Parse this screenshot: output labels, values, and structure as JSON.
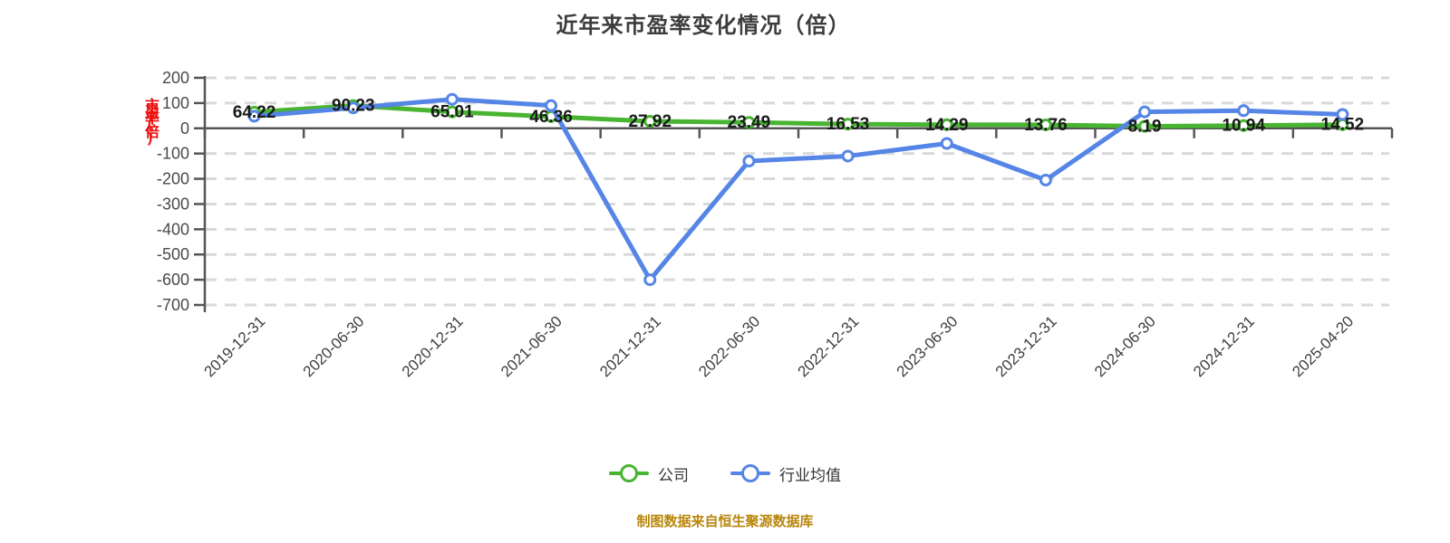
{
  "title": "近年来市盈率变化情况（倍）",
  "y_axis_unit_label": "市盈率(倍)",
  "footer": {
    "text": "制图数据来自恒生聚源数据库"
  },
  "legend": {
    "position": "bottom",
    "items": [
      {
        "label": "公司",
        "color": "#48b432"
      },
      {
        "label": "行业均值",
        "color": "#5585e6"
      }
    ]
  },
  "colors": {
    "company_line": "#48b432",
    "industry_line": "#5585e6",
    "grid_line": "#d9d9d9",
    "axis_line": "#555555",
    "y_tick_label": "#4a4a4a",
    "x_tick_label": "#3f3f3f",
    "value_label": "#1a1a1a",
    "title": "#3d3d3d",
    "footer": "#b8860b",
    "unit_label_red": "#ee1111",
    "background": "#ffffff"
  },
  "chart_data": {
    "type": "line",
    "title": "近年来市盈率变化情况（倍）",
    "xlabel": "",
    "ylabel": "市盈率(倍)",
    "ylim": [
      -700,
      200
    ],
    "y_ticks": [
      200,
      100,
      0,
      -100,
      -200,
      -300,
      -400,
      -500,
      -600,
      -700
    ],
    "grid": "horizontal-dashed",
    "legend_position": "bottom",
    "categories": [
      "2019-12-31",
      "2020-06-30",
      "2020-12-31",
      "2021-06-30",
      "2021-12-31",
      "2022-06-30",
      "2022-12-31",
      "2023-06-30",
      "2023-12-31",
      "2024-06-30",
      "2024-12-31",
      "2025-04-20"
    ],
    "series": [
      {
        "name": "公司",
        "color": "#48b432",
        "labels_shown": true,
        "values": [
          64.22,
          90.23,
          65.01,
          46.36,
          27.92,
          23.49,
          16.53,
          14.29,
          13.76,
          8.19,
          10.94,
          14.52
        ]
      },
      {
        "name": "行业均值",
        "color": "#5585e6",
        "labels_shown": false,
        "values_estimated": true,
        "values": [
          48,
          81,
          115,
          90,
          -600,
          -130,
          -110,
          -60,
          -205,
          65,
          70,
          55
        ]
      }
    ]
  }
}
